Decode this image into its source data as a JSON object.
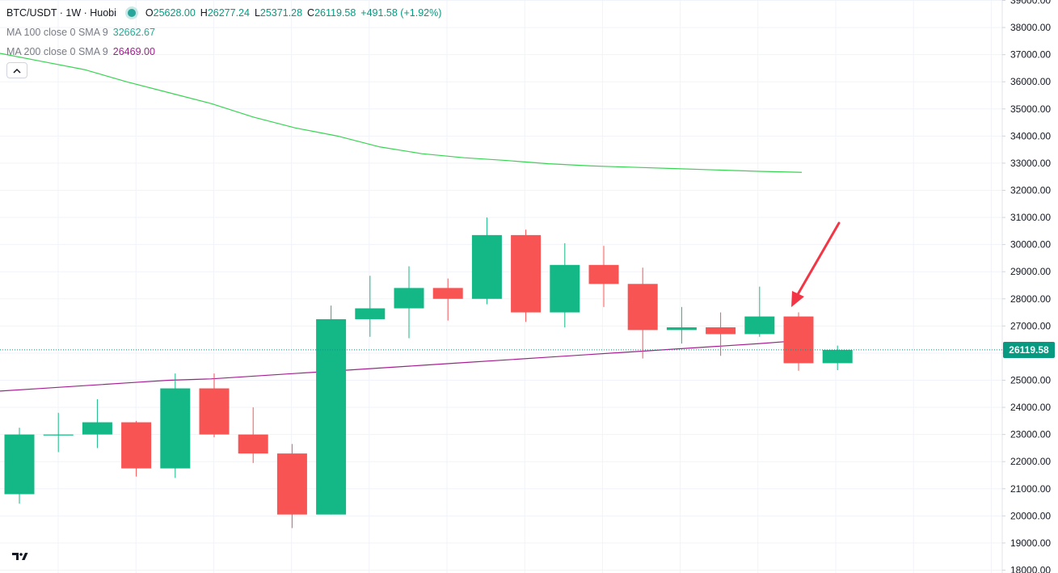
{
  "legend": {
    "title": "BTC/USDT · 1W · Huobi",
    "o_label": "O",
    "o_value": "25628.00",
    "h_label": "H",
    "h_value": "26277.24",
    "l_label": "L",
    "l_value": "25371.28",
    "c_label": "C",
    "c_value": "26119.58",
    "change": "+491.58 (+1.92%)",
    "ma100_name": "MA 100 close 0 SMA 9",
    "ma100_value": "32662.67",
    "ma200_name": "MA 200 close 0 SMA 9",
    "ma200_value": "26469.00"
  },
  "collapse_icon": "chevron-up-icon",
  "logo_icon": "tradingview-logo-icon",
  "price_tag": "26119.58",
  "colors": {
    "up": "#13b886",
    "down": "#f85454",
    "ma100": "#39d353",
    "ma200": "#a3218f",
    "last_price_line": "#089981",
    "grid": "#f0f3fa",
    "axis_text": "#131722"
  },
  "chart_data": {
    "type": "candlestick",
    "symbol": "BTC/USDT",
    "interval": "1W",
    "exchange": "Huobi",
    "ylim": [
      18000,
      39000
    ],
    "y_ticks": [
      "18000.00",
      "19000.00",
      "20000.00",
      "21000.00",
      "22000.00",
      "23000.00",
      "24000.00",
      "25000.00",
      "26000.00",
      "27000.00",
      "28000.00",
      "29000.00",
      "30000.00",
      "31000.00",
      "32000.00",
      "33000.00",
      "34000.00",
      "35000.00",
      "36000.00",
      "37000.00",
      "38000.00",
      "39000.00"
    ],
    "candles": [
      {
        "o": 20800,
        "h": 23250,
        "l": 20450,
        "c": 23000
      },
      {
        "o": 23000,
        "h": 23800,
        "l": 22350,
        "c": 23000
      },
      {
        "o": 23000,
        "h": 24300,
        "l": 22500,
        "c": 23450
      },
      {
        "o": 23450,
        "h": 23500,
        "l": 21450,
        "c": 21750
      },
      {
        "o": 21750,
        "h": 25250,
        "l": 21400,
        "c": 24700
      },
      {
        "o": 24700,
        "h": 25250,
        "l": 22900,
        "c": 23000
      },
      {
        "o": 23000,
        "h": 24000,
        "l": 21950,
        "c": 22300
      },
      {
        "o": 22300,
        "h": 22650,
        "l": 19550,
        "c": 20050
      },
      {
        "o": 20050,
        "h": 27750,
        "l": 20050,
        "c": 27250
      },
      {
        "o": 27250,
        "h": 28850,
        "l": 26600,
        "c": 27650
      },
      {
        "o": 27650,
        "h": 29200,
        "l": 26550,
        "c": 28400
      },
      {
        "o": 28400,
        "h": 28750,
        "l": 27200,
        "c": 28000
      },
      {
        "o": 28000,
        "h": 31000,
        "l": 27800,
        "c": 30350
      },
      {
        "o": 30350,
        "h": 30550,
        "l": 27150,
        "c": 27500
      },
      {
        "o": 27500,
        "h": 30050,
        "l": 26950,
        "c": 29250
      },
      {
        "o": 29250,
        "h": 29950,
        "l": 27700,
        "c": 28550
      },
      {
        "o": 28550,
        "h": 29150,
        "l": 25800,
        "c": 26850
      },
      {
        "o": 26850,
        "h": 27700,
        "l": 26350,
        "c": 26950
      },
      {
        "o": 26950,
        "h": 27500,
        "l": 25900,
        "c": 26700
      },
      {
        "o": 26700,
        "h": 28450,
        "l": 26600,
        "c": 27350
      },
      {
        "o": 27350,
        "h": 27500,
        "l": 25350,
        "c": 25628
      },
      {
        "o": 25628,
        "h": 26277.24,
        "l": 25371.28,
        "c": 26119.58
      }
    ],
    "ma100": [
      37050,
      36750,
      36450,
      36000,
      35600,
      35200,
      34700,
      34300,
      34000,
      33600,
      33350,
      33200,
      33100,
      32980,
      32900,
      32850,
      32800,
      32750,
      32700,
      32662.67
    ],
    "ma200": [
      24600,
      24700,
      24800,
      24900,
      25000,
      25050,
      25150,
      25250,
      25350,
      25450,
      25550,
      25650,
      25750,
      25850,
      25950,
      26050,
      26150,
      26250,
      26350,
      26469.0
    ],
    "last_price": 26119.58,
    "annotation": "arrow"
  }
}
